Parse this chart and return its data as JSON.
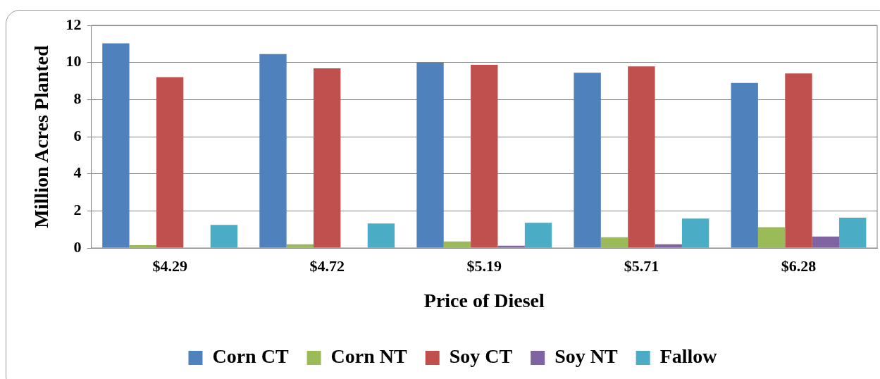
{
  "chart_data": {
    "type": "bar",
    "xlabel": "Price of Diesel",
    "ylabel": "Million Acres Planted",
    "categories": [
      "$4.29",
      "$4.72",
      "$5.19",
      "$5.71",
      "$6.28"
    ],
    "series": [
      {
        "name": "Corn CT",
        "color": "#4f81bd",
        "values": [
          11.03,
          10.45,
          9.99,
          9.45,
          8.9
        ]
      },
      {
        "name": "Corn NT",
        "color": "#9bbb59",
        "values": [
          0.15,
          0.2,
          0.35,
          0.58,
          1.12
        ]
      },
      {
        "name": "Soy CT",
        "color": "#c0504d",
        "values": [
          9.21,
          9.68,
          9.87,
          9.79,
          9.41
        ]
      },
      {
        "name": "Soy NT",
        "color": "#8064a2",
        "values": [
          0,
          0,
          0.12,
          0.2,
          0.62
        ]
      },
      {
        "name": "Fallow",
        "color": "#4bacc6",
        "values": [
          1.24,
          1.32,
          1.36,
          1.59,
          1.63
        ]
      }
    ],
    "ylim": [
      0,
      12
    ],
    "yticks": [
      0,
      2,
      4,
      6,
      8,
      10,
      12
    ],
    "grid": "y",
    "legend": "bottom"
  }
}
